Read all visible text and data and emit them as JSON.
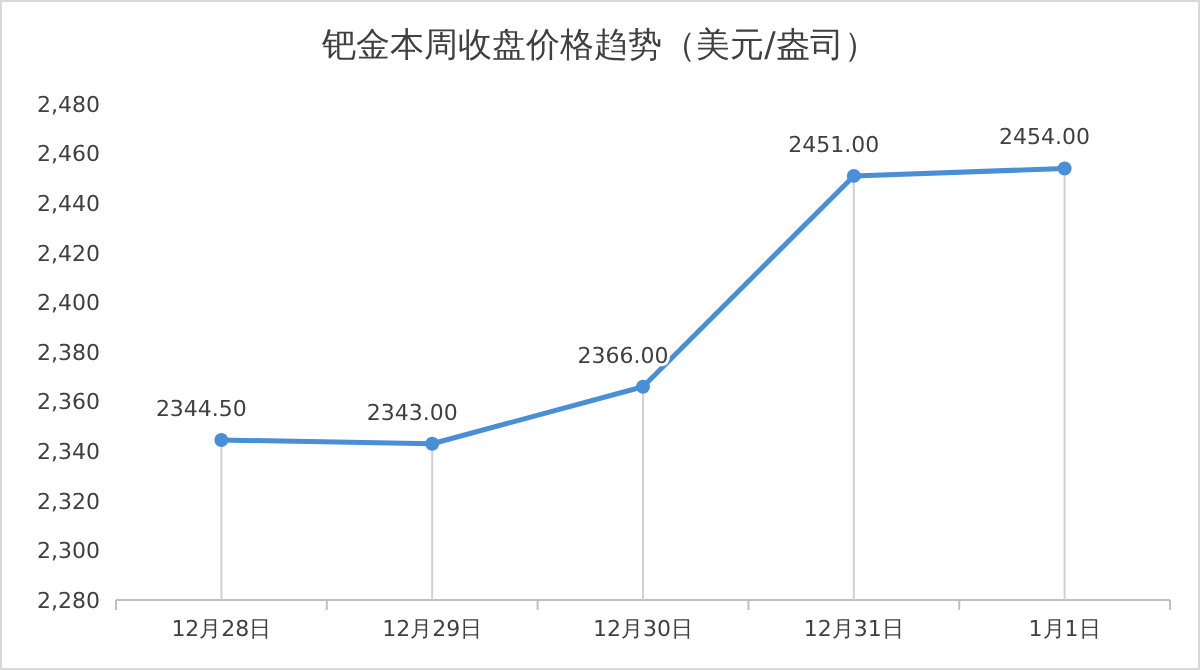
{
  "chart_data": {
    "type": "line",
    "title": "钯金本周收盘价格趋势（美元/盎司）",
    "categories": [
      "12月28日",
      "12月29日",
      "12月30日",
      "12月31日",
      "1月1日"
    ],
    "series": [
      {
        "color": "#4a8ed6",
        "values": [
          2344.5,
          2343.0,
          2366.0,
          2451.0,
          2454.0
        ],
        "value_labels": [
          "2344.50",
          "2343.00",
          "2366.00",
          "2451.00",
          "2454.00"
        ]
      }
    ],
    "ylim": [
      2280,
      2480
    ],
    "yticks": [
      {
        "value": 2280,
        "label": "2,280"
      },
      {
        "value": 2300,
        "label": "2,300"
      },
      {
        "value": 2320,
        "label": "2,320"
      },
      {
        "value": 2340,
        "label": "2,340"
      },
      {
        "value": 2360,
        "label": "2,360"
      },
      {
        "value": 2380,
        "label": "2,380"
      },
      {
        "value": 2400,
        "label": "2,400"
      },
      {
        "value": 2420,
        "label": "2,420"
      },
      {
        "value": 2440,
        "label": "2,440"
      },
      {
        "value": 2460,
        "label": "2,460"
      },
      {
        "value": 2480,
        "label": "2,480"
      }
    ],
    "grid": "x",
    "marker": "circle",
    "line_style": "solid"
  }
}
